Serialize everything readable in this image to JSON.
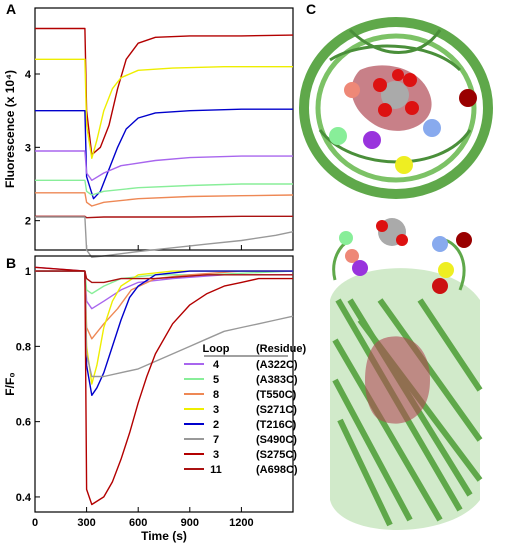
{
  "panels": {
    "a": "A",
    "b": "B",
    "c": "C"
  },
  "legend": {
    "header_loop": "Loop",
    "header_residue": "(Residue)"
  },
  "colors": {
    "T216C": "#0000cc",
    "S271C": "#eeee00",
    "S275C": "#b30000",
    "A322C": "#a866ee",
    "A383C": "#88ee99",
    "S490C": "#999999",
    "T550C": "#ee8855",
    "A698C": "#aa1111"
  },
  "structure": {
    "ribbon_color": "#5fa84a",
    "inner_color": "#b04a55",
    "ligand_color": "#aaaaaa"
  },
  "chart_data": [
    {
      "panel": "A",
      "type": "line",
      "title": "",
      "xlabel": "",
      "ylabel": "Fluorescence (x 10⁴)",
      "xlim": [
        0,
        1500
      ],
      "ylim": [
        1.6,
        4.9
      ],
      "xticks": [
        0,
        300,
        600,
        900,
        1200
      ],
      "yticks": [
        2,
        3,
        4
      ],
      "series": [
        {
          "key": "S275C",
          "x": [
            0,
            290,
            300,
            330,
            380,
            430,
            480,
            530,
            600,
            700,
            900,
            1200,
            1500
          ],
          "y": [
            4.62,
            4.62,
            3.5,
            2.9,
            3.0,
            3.3,
            3.8,
            4.2,
            4.42,
            4.5,
            4.52,
            4.52,
            4.53
          ]
        },
        {
          "key": "S271C",
          "x": [
            0,
            290,
            300,
            330,
            360,
            400,
            450,
            500,
            600,
            800,
            1100,
            1500
          ],
          "y": [
            4.2,
            4.2,
            3.3,
            2.85,
            3.1,
            3.5,
            3.8,
            3.95,
            4.05,
            4.08,
            4.1,
            4.1
          ]
        },
        {
          "key": "T216C",
          "x": [
            0,
            290,
            300,
            340,
            380,
            430,
            480,
            530,
            600,
            700,
            900,
            1200,
            1500
          ],
          "y": [
            3.5,
            3.5,
            2.6,
            2.3,
            2.4,
            2.7,
            3.0,
            3.25,
            3.4,
            3.47,
            3.5,
            3.52,
            3.52
          ]
        },
        {
          "key": "A322C",
          "x": [
            0,
            290,
            300,
            330,
            400,
            500,
            700,
            900,
            1200,
            1500
          ],
          "y": [
            2.95,
            2.95,
            2.65,
            2.55,
            2.65,
            2.75,
            2.82,
            2.86,
            2.88,
            2.88
          ]
        },
        {
          "key": "A383C",
          "x": [
            0,
            290,
            300,
            330,
            400,
            600,
            900,
            1200,
            1500
          ],
          "y": [
            2.55,
            2.55,
            2.4,
            2.35,
            2.4,
            2.45,
            2.48,
            2.5,
            2.5
          ]
        },
        {
          "key": "T550C",
          "x": [
            0,
            290,
            300,
            330,
            400,
            600,
            900,
            1200,
            1500
          ],
          "y": [
            2.38,
            2.38,
            2.25,
            2.2,
            2.25,
            2.3,
            2.33,
            2.34,
            2.35
          ]
        },
        {
          "key": "A698C",
          "x": [
            0,
            290,
            300,
            400,
            600,
            900,
            1200,
            1500
          ],
          "y": [
            2.06,
            2.06,
            2.04,
            2.05,
            2.05,
            2.05,
            2.06,
            2.06
          ]
        },
        {
          "key": "S490C",
          "x": [
            0,
            290,
            300,
            330,
            400,
            600,
            800,
            1000,
            1200,
            1400,
            1500
          ],
          "y": [
            2.05,
            2.05,
            1.6,
            1.5,
            1.52,
            1.58,
            1.63,
            1.68,
            1.73,
            1.8,
            1.85
          ]
        }
      ]
    },
    {
      "panel": "B",
      "type": "line",
      "title": "",
      "xlabel": "Time (s)",
      "ylabel": "F/F₀",
      "xlim": [
        0,
        1500
      ],
      "ylim": [
        0.36,
        1.04
      ],
      "xticks": [
        0,
        300,
        600,
        900,
        1200
      ],
      "xticklabels": [
        "0",
        "300",
        "600",
        "900",
        "1200"
      ],
      "yticks": [
        0.4,
        0.6,
        0.8,
        1.0
      ],
      "yticklabels": [
        "0.4",
        "0.6",
        "0.8",
        "1"
      ],
      "series": [
        {
          "key": "A322C",
          "loop": "4",
          "residue": "(A322C)",
          "x": [
            0,
            290,
            300,
            330,
            400,
            500,
            600,
            800,
            1100,
            1500
          ],
          "y": [
            1.01,
            1.0,
            0.92,
            0.9,
            0.92,
            0.95,
            0.97,
            0.98,
            0.99,
            0.99
          ]
        },
        {
          "key": "A383C",
          "loop": "5",
          "residue": "(A383C)",
          "x": [
            0,
            290,
            300,
            330,
            400,
            500,
            700,
            1000,
            1500
          ],
          "y": [
            1.0,
            1.0,
            0.95,
            0.94,
            0.96,
            0.98,
            0.99,
            0.99,
            1.0
          ]
        },
        {
          "key": "T550C",
          "loop": "8",
          "residue": "(T550C)",
          "x": [
            0,
            290,
            300,
            330,
            400,
            480,
            560,
            700,
            900,
            1200,
            1500
          ],
          "y": [
            1.0,
            1.0,
            0.85,
            0.82,
            0.86,
            0.9,
            0.95,
            0.98,
            0.99,
            1.0,
            1.0
          ]
        },
        {
          "key": "S271C",
          "loop": "3",
          "residue": "(S271C)",
          "x": [
            0,
            290,
            300,
            330,
            360,
            400,
            450,
            500,
            600,
            800,
            1100,
            1500
          ],
          "y": [
            1.0,
            1.0,
            0.8,
            0.7,
            0.75,
            0.85,
            0.92,
            0.96,
            0.99,
            1.0,
            1.0,
            1.0
          ]
        },
        {
          "key": "T216C",
          "loop": "2",
          "residue": "(T216C)",
          "x": [
            0,
            290,
            300,
            330,
            360,
            400,
            450,
            500,
            550,
            600,
            700,
            900,
            1200,
            1500
          ],
          "y": [
            1.0,
            1.0,
            0.75,
            0.67,
            0.69,
            0.73,
            0.8,
            0.87,
            0.93,
            0.96,
            0.99,
            1.0,
            1.0,
            1.0
          ]
        },
        {
          "key": "S490C",
          "loop": "7",
          "residue": "(S490C)",
          "x": [
            0,
            290,
            300,
            330,
            400,
            500,
            600,
            700,
            800,
            900,
            1000,
            1100,
            1200,
            1300,
            1400,
            1500
          ],
          "y": [
            1.0,
            1.0,
            0.78,
            0.72,
            0.72,
            0.73,
            0.74,
            0.76,
            0.78,
            0.8,
            0.82,
            0.84,
            0.85,
            0.86,
            0.87,
            0.88
          ]
        },
        {
          "key": "S275C",
          "loop": "3",
          "residue": "(S275C)",
          "x": [
            0,
            290,
            300,
            330,
            400,
            450,
            500,
            550,
            600,
            650,
            700,
            800,
            900,
            1000,
            1100,
            1200,
            1300,
            1400,
            1500
          ],
          "y": [
            1.01,
            1.0,
            0.42,
            0.38,
            0.4,
            0.44,
            0.5,
            0.57,
            0.65,
            0.72,
            0.78,
            0.86,
            0.91,
            0.94,
            0.96,
            0.97,
            0.98,
            0.98,
            0.98
          ]
        },
        {
          "key": "A698C",
          "loop": "11",
          "residue": "(A698C)",
          "x": [
            0,
            290,
            300,
            330,
            400,
            500,
            700,
            1000,
            1500
          ],
          "y": [
            1.0,
            1.0,
            0.98,
            0.97,
            0.97,
            0.98,
            0.98,
            0.99,
            0.99
          ]
        }
      ]
    }
  ]
}
